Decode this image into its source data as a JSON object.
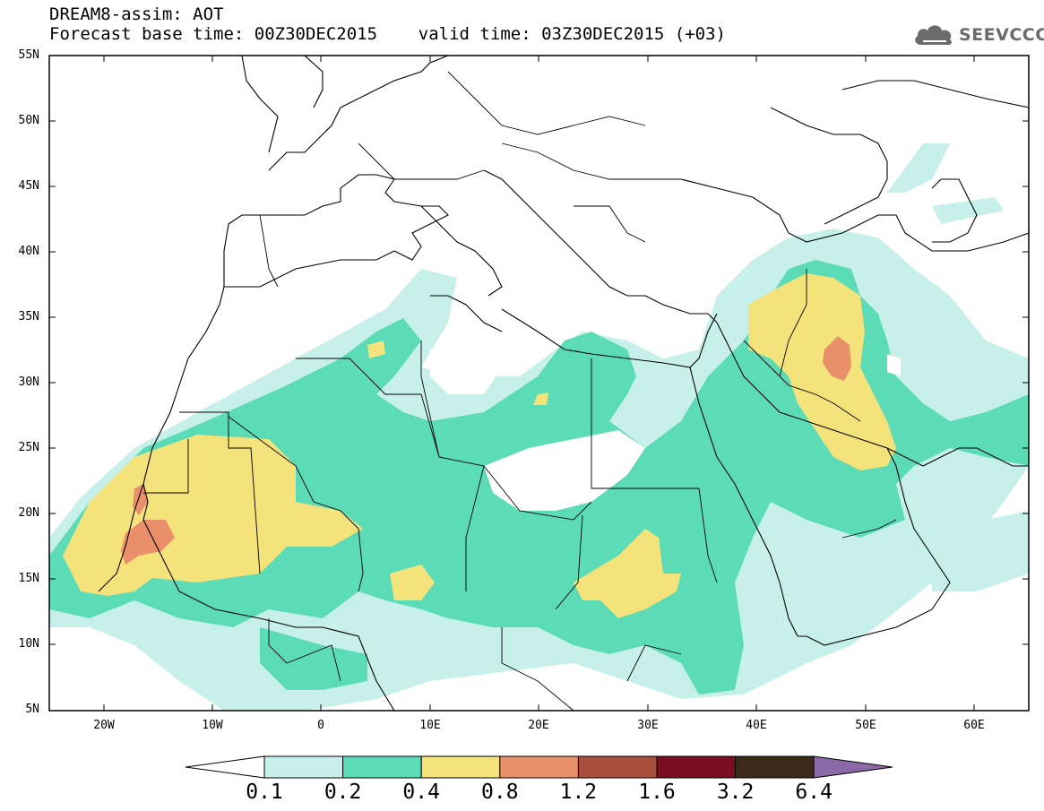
{
  "title": {
    "line1": "DREAM8-assim: AOT",
    "line2": "Forecast base time: 00Z30DEC2015    valid time: 03Z30DEC2015 (+03)"
  },
  "logo": {
    "text": "SEEVCCC",
    "icon": "cloud-icon",
    "color": "#6b6b6b"
  },
  "map": {
    "lat_labels": [
      "55N",
      "50N",
      "45N",
      "40N",
      "35N",
      "30N",
      "25N",
      "20N",
      "15N",
      "10N",
      "5N"
    ],
    "lon_labels": [
      "20W",
      "10W",
      "0",
      "10E",
      "20E",
      "30E",
      "40E",
      "50E",
      "60E"
    ],
    "lon_range": [
      "25W",
      "65E"
    ],
    "lat_range": [
      "5N",
      "55N"
    ]
  },
  "colorbar": {
    "labels": [
      "0.1",
      "0.2",
      "0.4",
      "0.8",
      "1.2",
      "1.6",
      "3.2",
      "6.4"
    ],
    "colors": [
      "#c8f0ea",
      "#5cdcb6",
      "#f4e27a",
      "#e9906a",
      "#a84c3c",
      "#7a0f22",
      "#3b2a1a",
      "#8b6aa8"
    ]
  }
}
